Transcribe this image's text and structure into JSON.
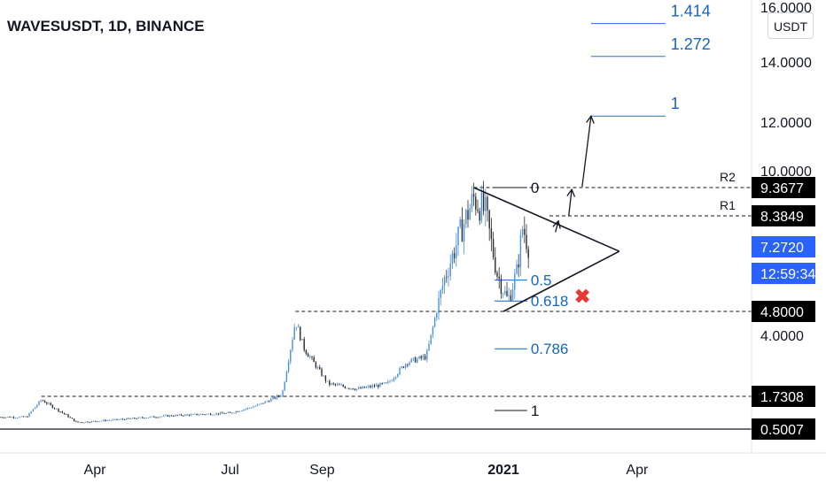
{
  "title": "WAVESUSDT, 1D, BINANCE",
  "currency_label": "USDT",
  "colors": {
    "up": "#4a90d9",
    "down": "#2a2a2a",
    "fib": "#1565c0",
    "ext": "#2962ff",
    "price_tag": "#2962ff",
    "marker": "#e53935"
  },
  "chart_data": {
    "type": "candlestick",
    "price_axis": {
      "ticks": [
        {
          "value": 16,
          "label": "16.0000"
        },
        {
          "value": 14,
          "label": "14.0000"
        },
        {
          "value": 12,
          "label": "12.0000"
        },
        {
          "value": 10,
          "label": "10.0000"
        },
        {
          "value": 4,
          "label": "4.0000"
        }
      ]
    },
    "time_axis": {
      "ticks": [
        {
          "date": "2020-04-01",
          "label": "Apr",
          "bold": false
        },
        {
          "date": "2020-07-01",
          "label": "Jul",
          "bold": false
        },
        {
          "date": "2020-09-01",
          "label": "Sep",
          "bold": false
        },
        {
          "date": "2021-01-01",
          "label": "2021",
          "bold": true
        },
        {
          "date": "2021-04-01",
          "label": "Apr",
          "bold": false
        }
      ]
    },
    "price_labels": [
      {
        "value": 9.3677,
        "label": "9.3677",
        "style": "black"
      },
      {
        "value": 8.3849,
        "label": "8.3849",
        "style": "black"
      },
      {
        "value": 7.272,
        "label": "7.2720",
        "style": "blue"
      },
      {
        "label": "12:59:34",
        "style": "blue"
      },
      {
        "value": 4.8,
        "label": "4.8000",
        "style": "black"
      },
      {
        "value": 1.7308,
        "label": "1.7308",
        "style": "black"
      },
      {
        "value": 0.5007,
        "label": "0.5007",
        "style": "black"
      }
    ],
    "levels": [
      {
        "value": 9.3677,
        "name": "R2"
      },
      {
        "value": 8.3849,
        "name": "R1"
      },
      {
        "value": 4.8,
        "name": ""
      },
      {
        "value": 1.7308,
        "name": ""
      }
    ],
    "fib_retracement": [
      {
        "ratio": "0",
        "value": 9.3677
      },
      {
        "ratio": "0.5",
        "value": 6.0
      },
      {
        "ratio": "0.618",
        "value": 5.2
      },
      {
        "ratio": "0.786",
        "value": 3.5
      },
      {
        "ratio": "1",
        "value": 1.2
      }
    ],
    "fib_extension": [
      {
        "ratio": "1.414",
        "value": 15.4
      },
      {
        "ratio": "1.272",
        "value": 14.2
      },
      {
        "ratio": "1",
        "value": 12.2
      }
    ],
    "waypoints": [
      {
        "date": "2020-02-15",
        "price": 0.95
      },
      {
        "date": "2020-02-25",
        "price": 1.6
      },
      {
        "date": "2020-03-12",
        "price": 1.05
      },
      {
        "date": "2020-03-20",
        "price": 0.75
      },
      {
        "date": "2020-04-15",
        "price": 0.85
      },
      {
        "date": "2020-05-20",
        "price": 1.0
      },
      {
        "date": "2020-07-01",
        "price": 1.1
      },
      {
        "date": "2020-07-20",
        "price": 1.4
      },
      {
        "date": "2020-08-05",
        "price": 1.8
      },
      {
        "date": "2020-08-14",
        "price": 4.5
      },
      {
        "date": "2020-08-20",
        "price": 3.5
      },
      {
        "date": "2020-09-05",
        "price": 2.2
      },
      {
        "date": "2020-09-25",
        "price": 2.0
      },
      {
        "date": "2020-10-15",
        "price": 2.2
      },
      {
        "date": "2020-10-28",
        "price": 3.0
      },
      {
        "date": "2020-11-10",
        "price": 3.2
      },
      {
        "date": "2020-11-22",
        "price": 6.0
      },
      {
        "date": "2020-12-03",
        "price": 7.8
      },
      {
        "date": "2020-12-12",
        "price": 9.0
      },
      {
        "date": "2020-12-20",
        "price": 8.5
      },
      {
        "date": "2020-12-28",
        "price": 6.2
      },
      {
        "date": "2021-01-04",
        "price": 5.2
      },
      {
        "date": "2021-01-10",
        "price": 6.3
      },
      {
        "date": "2021-01-14",
        "price": 8.0
      },
      {
        "date": "2021-01-18",
        "price": 7.27
      }
    ],
    "annotations": {
      "triangle": [
        {
          "date": "2020-12-12",
          "price": 9.3677
        },
        {
          "date": "2021-03-20",
          "price": 7.1
        },
        {
          "date": "2021-01-01",
          "price": 4.8
        }
      ],
      "arrows": [
        {
          "from": {
            "date": "2021-02-05",
            "price": 7.8
          },
          "to": {
            "date": "2021-02-07",
            "price": 8.2
          }
        },
        {
          "from": {
            "date": "2021-02-14",
            "price": 8.4
          },
          "to": {
            "date": "2021-02-16",
            "price": 9.3
          }
        },
        {
          "from": {
            "date": "2021-02-23",
            "price": 9.4
          },
          "to": {
            "date": "2021-03-01",
            "price": 12.2
          }
        }
      ],
      "invalid_marker": {
        "date": "2021-02-23",
        "price": 5.4,
        "symbol": "✖"
      }
    }
  }
}
